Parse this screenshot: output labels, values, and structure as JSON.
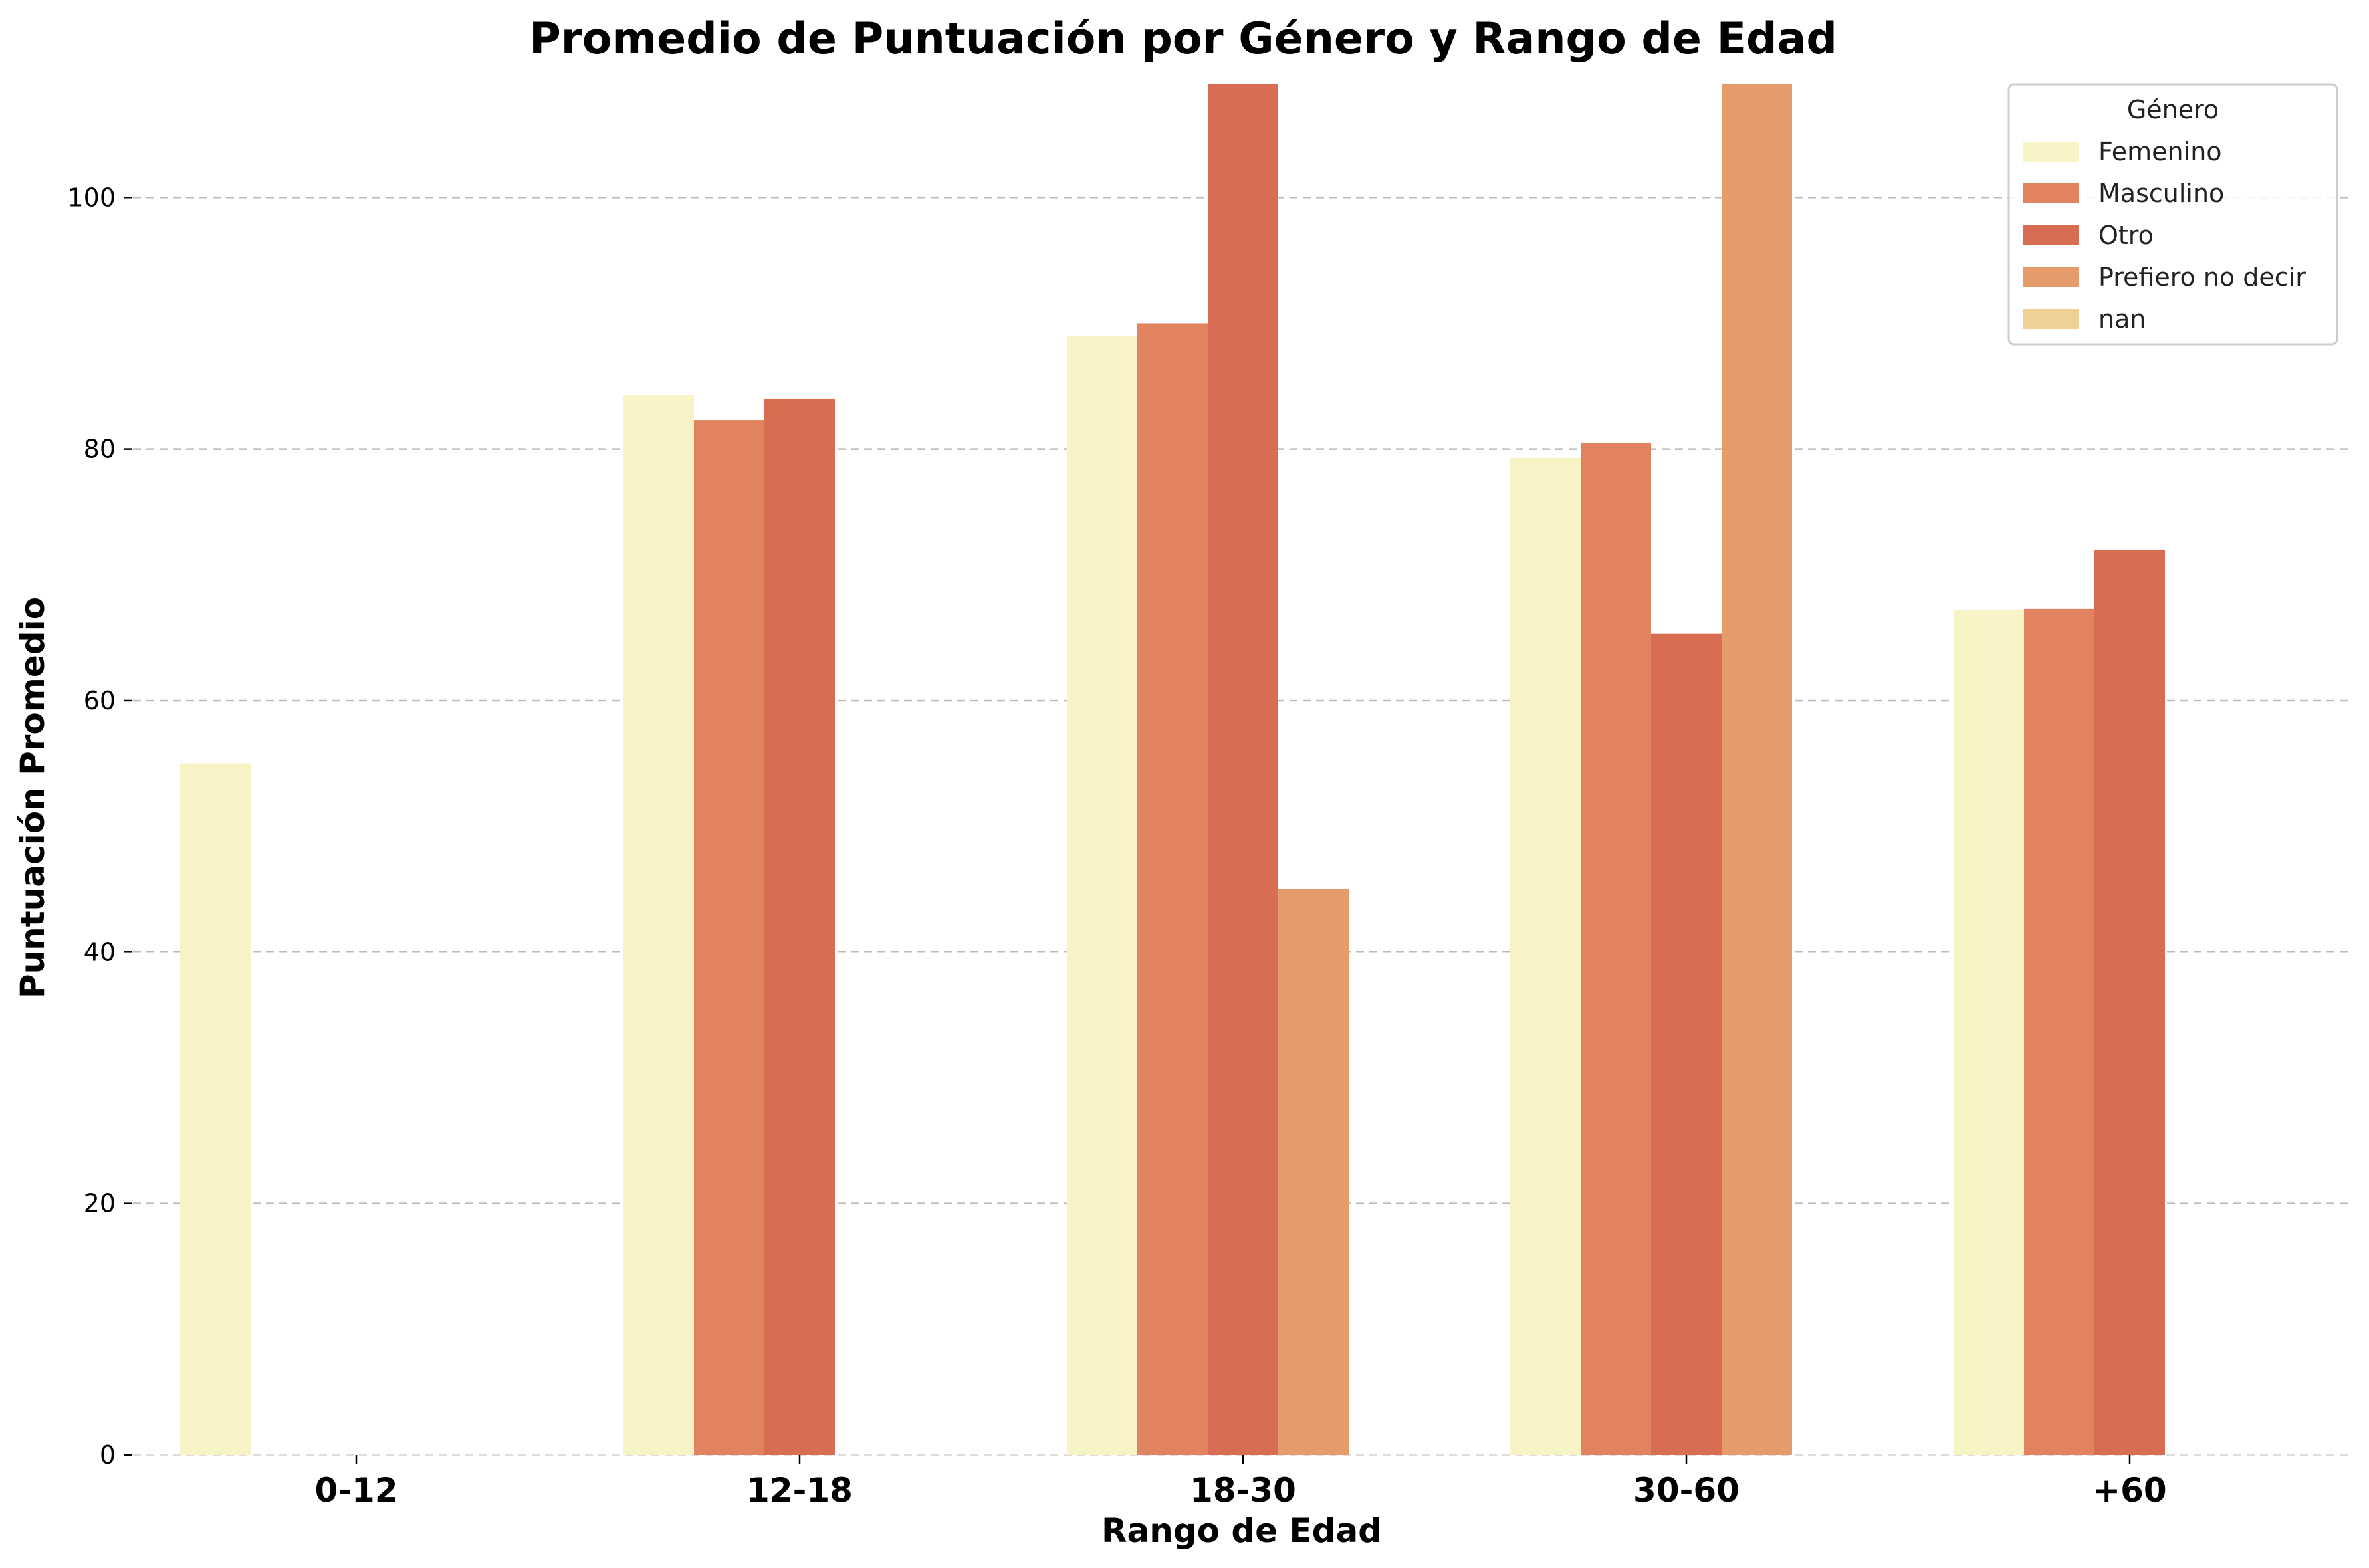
{
  "chart_data": {
    "type": "bar",
    "title": "Promedio de Puntuación por Género y Rango de Edad",
    "xlabel": "Rango de Edad",
    "ylabel": "Puntuación Promedio",
    "categories": [
      "0-12",
      "12-18",
      "18-30",
      "30-60",
      "+60"
    ],
    "ylim": [
      0,
      109
    ],
    "yticks": [
      0,
      20,
      40,
      60,
      80,
      100
    ],
    "grid": "horizontal dashed",
    "legend": {
      "title": "Género",
      "placement": "top-right"
    },
    "series": [
      {
        "name": "Femenino",
        "color": "#f7f3c4",
        "values": [
          55,
          84.3,
          89,
          79.3,
          67.2
        ]
      },
      {
        "name": "Masculino",
        "color": "#e1835f",
        "values": [
          null,
          82.3,
          90,
          80.5,
          67.3
        ]
      },
      {
        "name": "Otro",
        "color": "#d86d53",
        "values": [
          null,
          84,
          109,
          65.3,
          72
        ]
      },
      {
        "name": "Prefiero no decir",
        "color": "#e69c6a",
        "values": [
          null,
          null,
          45,
          109,
          null
        ]
      },
      {
        "name": "nan",
        "color": "#efd095",
        "values": [
          null,
          null,
          null,
          null,
          null
        ]
      }
    ]
  }
}
